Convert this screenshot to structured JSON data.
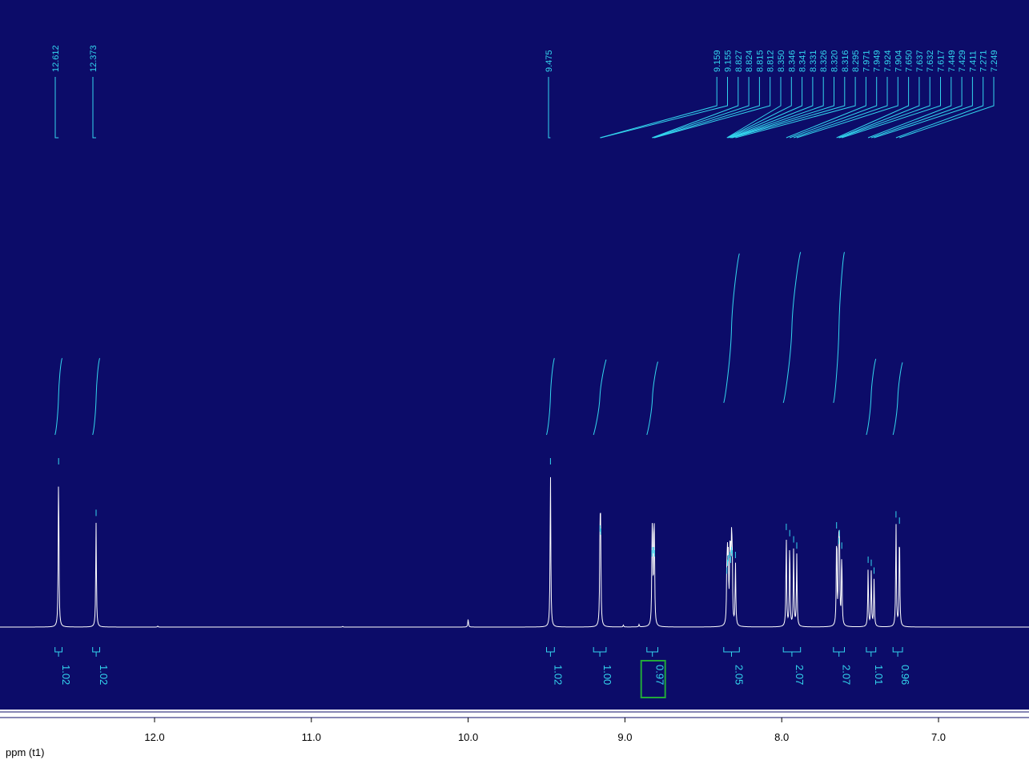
{
  "colors": {
    "background": "#0c0c69",
    "spectrum": "#ffffff",
    "annotation": "#33d6ee",
    "highlight": "#22a93a",
    "axis_background": "#ffffff",
    "axis_text": "#000000"
  },
  "chart_data": {
    "type": "line",
    "title": "",
    "xlabel": "ppm (t1)",
    "ylabel": "",
    "x_reversed": true,
    "xlim": [
      13.0,
      6.45
    ],
    "grid": false,
    "x_ticks": [
      {
        "value": 12.0,
        "label": "12.0"
      },
      {
        "value": 11.0,
        "label": "11.0"
      },
      {
        "value": 10.0,
        "label": "10.0"
      },
      {
        "value": 9.0,
        "label": "9.0"
      },
      {
        "value": 8.0,
        "label": "8.0"
      },
      {
        "value": 7.0,
        "label": "7.0"
      }
    ],
    "peak_labels": [
      {
        "label": "12.612",
        "value": 12.612
      },
      {
        "label": "12.373",
        "value": 12.373
      },
      {
        "label": "9.475",
        "value": 9.475
      },
      {
        "label": "9.159",
        "value": 9.159
      },
      {
        "label": "9.155",
        "value": 9.155
      },
      {
        "label": "8.827",
        "value": 8.827
      },
      {
        "label": "8.824",
        "value": 8.824
      },
      {
        "label": "8.815",
        "value": 8.815
      },
      {
        "label": "8.812",
        "value": 8.812
      },
      {
        "label": "8.350",
        "value": 8.35
      },
      {
        "label": "8.346",
        "value": 8.346
      },
      {
        "label": "8.341",
        "value": 8.341
      },
      {
        "label": "8.331",
        "value": 8.331
      },
      {
        "label": "8.326",
        "value": 8.326
      },
      {
        "label": "8.320",
        "value": 8.32
      },
      {
        "label": "8.316",
        "value": 8.316
      },
      {
        "label": "8.295",
        "value": 8.295
      },
      {
        "label": "7.971",
        "value": 7.971
      },
      {
        "label": "7.949",
        "value": 7.949
      },
      {
        "label": "7.924",
        "value": 7.924
      },
      {
        "label": "7.904",
        "value": 7.904
      },
      {
        "label": "7.650",
        "value": 7.65
      },
      {
        "label": "7.637",
        "value": 7.637
      },
      {
        "label": "7.632",
        "value": 7.632
      },
      {
        "label": "7.617",
        "value": 7.617
      },
      {
        "label": "7.449",
        "value": 7.449
      },
      {
        "label": "7.429",
        "value": 7.429
      },
      {
        "label": "7.411",
        "value": 7.411
      },
      {
        "label": "7.271",
        "value": 7.271
      },
      {
        "label": "7.249",
        "value": 7.249
      }
    ],
    "integrals": [
      {
        "value": "1.02",
        "start": 12.635,
        "end": 12.59,
        "highlighted": false
      },
      {
        "value": "1.02",
        "start": 12.395,
        "end": 12.35,
        "highlighted": false
      },
      {
        "value": "1.02",
        "start": 9.5,
        "end": 9.45,
        "highlighted": false
      },
      {
        "value": "1.00",
        "start": 9.2,
        "end": 9.12,
        "highlighted": false
      },
      {
        "value": "0.97",
        "start": 8.86,
        "end": 8.79,
        "highlighted": true
      },
      {
        "value": "2.05",
        "start": 8.37,
        "end": 8.27,
        "highlighted": false
      },
      {
        "value": "2.07",
        "start": 7.99,
        "end": 7.88,
        "highlighted": false
      },
      {
        "value": "2.07",
        "start": 7.67,
        "end": 7.6,
        "highlighted": false
      },
      {
        "value": "1.01",
        "start": 7.46,
        "end": 7.4,
        "highlighted": false
      },
      {
        "value": "0.96",
        "start": 7.29,
        "end": 7.23,
        "highlighted": false
      }
    ],
    "peaks": [
      {
        "x": 12.612,
        "intensity": 1.0
      },
      {
        "x": 12.373,
        "intensity": 0.67
      },
      {
        "x": 9.475,
        "intensity": 1.0
      },
      {
        "x": 9.159,
        "intensity": 0.57
      },
      {
        "x": 9.155,
        "intensity": 0.55
      },
      {
        "x": 8.827,
        "intensity": 0.41
      },
      {
        "x": 8.824,
        "intensity": 0.43
      },
      {
        "x": 8.815,
        "intensity": 0.43
      },
      {
        "x": 8.812,
        "intensity": 0.41
      },
      {
        "x": 8.35,
        "intensity": 0.3
      },
      {
        "x": 8.346,
        "intensity": 0.35
      },
      {
        "x": 8.341,
        "intensity": 0.38
      },
      {
        "x": 8.331,
        "intensity": 0.4
      },
      {
        "x": 8.326,
        "intensity": 0.37
      },
      {
        "x": 8.32,
        "intensity": 0.43
      },
      {
        "x": 8.316,
        "intensity": 0.41
      },
      {
        "x": 8.295,
        "intensity": 0.4
      },
      {
        "x": 7.971,
        "intensity": 0.58
      },
      {
        "x": 7.949,
        "intensity": 0.54
      },
      {
        "x": 7.924,
        "intensity": 0.5
      },
      {
        "x": 7.904,
        "intensity": 0.46
      },
      {
        "x": 7.65,
        "intensity": 0.59
      },
      {
        "x": 7.637,
        "intensity": 0.49
      },
      {
        "x": 7.632,
        "intensity": 0.54
      },
      {
        "x": 7.617,
        "intensity": 0.46
      },
      {
        "x": 7.449,
        "intensity": 0.37
      },
      {
        "x": 7.429,
        "intensity": 0.35
      },
      {
        "x": 7.411,
        "intensity": 0.3
      },
      {
        "x": 7.271,
        "intensity": 0.66
      },
      {
        "x": 7.249,
        "intensity": 0.62
      },
      {
        "x": 10.0,
        "intensity": 0.05
      },
      {
        "x": 9.01,
        "intensity": 0.012
      },
      {
        "x": 8.91,
        "intensity": 0.015
      },
      {
        "x": 11.98,
        "intensity": 0.006
      },
      {
        "x": 10.8,
        "intensity": 0.004
      }
    ]
  }
}
